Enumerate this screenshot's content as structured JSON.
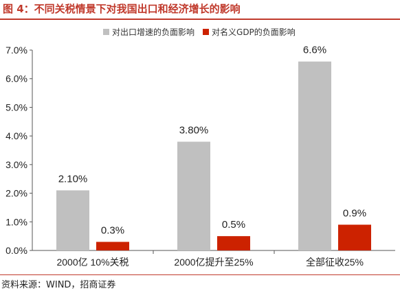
{
  "title": "图 4：不同关税情景下对我国出口和经济增长的影响",
  "source": "资料来源：WIND，招商证券",
  "colors": {
    "accent": "#c0392b",
    "grey_series": "#c0c0c0",
    "red_series": "#cc2200"
  },
  "chart_data": {
    "type": "bar",
    "categories": [
      "2000亿 10%关税",
      "2000亿提升至25%",
      "全部征收25%"
    ],
    "series": [
      {
        "name": "对出口增速的负面影响",
        "values": [
          2.1,
          3.8,
          6.6
        ],
        "labels": [
          "2.10%",
          "3.80%",
          "6.6%"
        ],
        "color": "#c0c0c0"
      },
      {
        "name": "对名义GDP的负面影响",
        "values": [
          0.3,
          0.5,
          0.9
        ],
        "labels": [
          "0.3%",
          "0.5%",
          "0.9%"
        ],
        "color": "#cc2200"
      }
    ],
    "ylim": [
      0,
      7
    ],
    "yticks": [
      "0.0%",
      "1.0%",
      "2.0%",
      "3.0%",
      "4.0%",
      "5.0%",
      "6.0%",
      "7.0%"
    ],
    "xlabel": "",
    "ylabel": "",
    "grid": false,
    "legend": "top"
  }
}
